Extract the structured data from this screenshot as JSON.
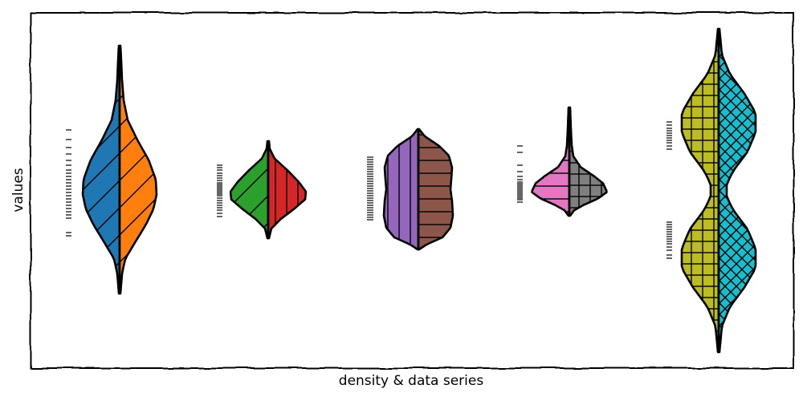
{
  "chart_data": {
    "type": "violin",
    "style": "xkcd",
    "xlabel": "density & data series",
    "ylabel": "values",
    "grid": false,
    "legend": "none",
    "violins": [
      {
        "left": {
          "color": "#1f77b4",
          "hatch": "diagonal"
        },
        "right": {
          "color": "#ff7f0e",
          "hatch": "diagonal"
        },
        "rug": [
          -0.52,
          -0.48,
          -0.3,
          -0.26,
          -0.22,
          -0.18,
          -0.14,
          -0.1,
          -0.06,
          -0.02,
          0.02,
          0.06,
          0.1,
          0.14,
          0.18,
          0.22,
          0.26,
          0.3,
          0.36,
          0.42,
          0.5,
          0.58,
          0.68,
          0.8
        ]
      },
      {
        "left": {
          "color": "#2ca02c",
          "hatch": "diagonal"
        },
        "right": {
          "color": "#d62728",
          "hatch": "vertical"
        },
        "rug": [
          -0.28,
          -0.24,
          -0.2,
          -0.17,
          -0.14,
          -0.11,
          -0.08,
          -0.05,
          -0.02,
          0.0,
          0.02,
          0.04,
          0.06,
          0.08,
          0.1,
          0.12,
          0.14,
          0.17,
          0.2,
          0.23,
          0.26,
          0.3,
          0.33,
          0.36
        ]
      },
      {
        "left": {
          "color": "#9467bd",
          "hatch": "vertical"
        },
        "right": {
          "color": "#8c564b",
          "hatch": "horizontal"
        },
        "rug": [
          -0.32,
          -0.29,
          -0.26,
          -0.23,
          -0.2,
          -0.17,
          -0.14,
          -0.11,
          -0.08,
          -0.05,
          -0.02,
          0.01,
          0.04,
          0.07,
          0.1,
          0.13,
          0.16,
          0.19,
          0.22,
          0.25,
          0.28,
          0.31,
          0.34,
          0.37,
          0.4,
          0.43,
          0.46
        ]
      },
      {
        "left": {
          "color": "#e377c2",
          "hatch": "horizontal"
        },
        "right": {
          "color": "#7f7f7f",
          "hatch": "grid"
        },
        "rug": [
          -0.1,
          -0.07,
          -0.05,
          -0.03,
          -0.01,
          0.01,
          0.03,
          0.05,
          0.07,
          0.09,
          0.11,
          0.13,
          0.15,
          0.18,
          0.22,
          0.28,
          0.36,
          0.52,
          0.6
        ]
      },
      {
        "left": {
          "color": "#bcbd22",
          "hatch": "grid"
        },
        "right": {
          "color": "#17becf",
          "hatch": "crosshatch"
        },
        "rug": [
          0.56,
          0.6,
          0.64,
          0.67,
          0.7,
          0.73,
          0.76,
          0.79,
          0.82,
          0.86,
          0.9,
          -0.35,
          -0.38,
          -0.41,
          -0.44,
          -0.47,
          -0.5,
          -0.53,
          -0.56,
          -0.59,
          -0.62,
          -0.66,
          -0.7,
          -0.76,
          -0.8
        ]
      }
    ]
  }
}
